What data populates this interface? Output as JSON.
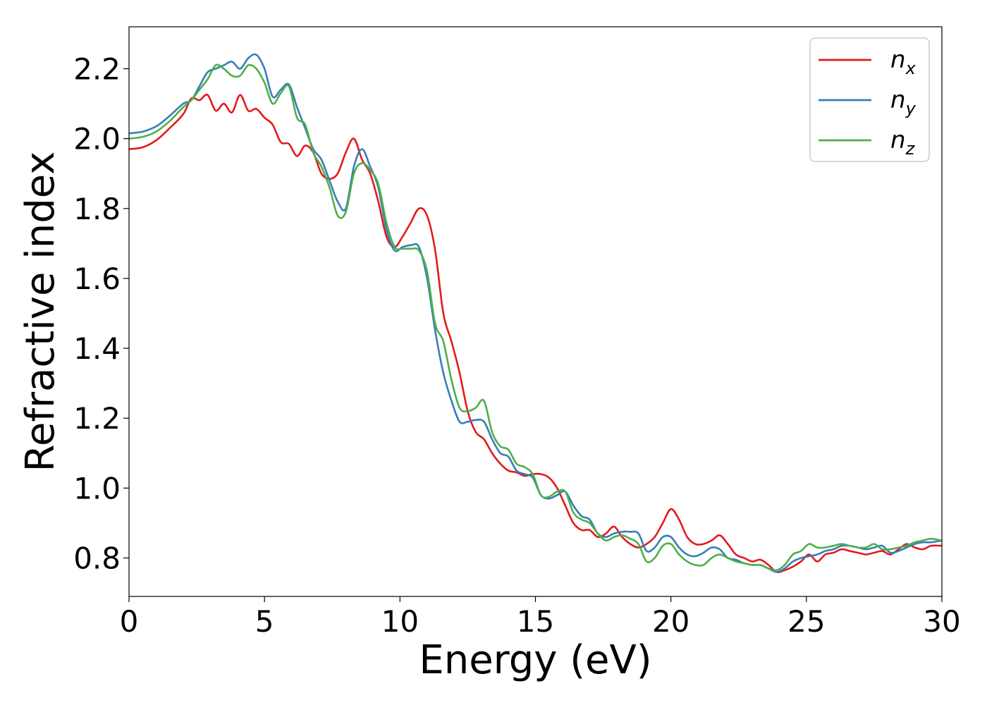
{
  "chart_data": {
    "type": "line",
    "xlabel": "Energy (eV)",
    "ylabel": "Refractive index",
    "xlim": [
      0,
      30
    ],
    "ylim": [
      0.69,
      2.32
    ],
    "xticks": [
      "0",
      "5",
      "10",
      "15",
      "20",
      "25",
      "30"
    ],
    "yticks": [
      "0.8",
      "1.0",
      "1.2",
      "1.4",
      "1.6",
      "1.8",
      "2.0",
      "2.2"
    ],
    "grid": false,
    "legend_position": "top-right",
    "series": [
      {
        "name": "n_x",
        "label_main": "n",
        "label_sub": "x",
        "color": "#e41a1c",
        "x": [
          0,
          0.5,
          1,
          1.5,
          2,
          2.3,
          2.6,
          2.9,
          3.2,
          3.5,
          3.8,
          4.1,
          4.4,
          4.7,
          5,
          5.3,
          5.6,
          5.9,
          6.2,
          6.5,
          6.8,
          7.1,
          7.4,
          7.7,
          8,
          8.3,
          8.6,
          8.9,
          9.2,
          9.5,
          9.8,
          10.1,
          10.4,
          10.7,
          11.0,
          11.3,
          11.6,
          11.9,
          12.2,
          12.5,
          12.8,
          13.1,
          13.4,
          13.7,
          14.0,
          14.3,
          14.6,
          14.9,
          15.2,
          15.5,
          15.8,
          16.1,
          16.4,
          16.7,
          17.0,
          17.3,
          17.6,
          17.9,
          18.2,
          18.5,
          18.8,
          19.1,
          19.4,
          19.7,
          20.0,
          20.3,
          20.6,
          20.9,
          21.2,
          21.5,
          21.8,
          22.1,
          22.4,
          22.7,
          23.0,
          23.3,
          23.6,
          23.9,
          24.2,
          24.5,
          24.8,
          25.1,
          25.4,
          25.7,
          26.0,
          26.3,
          26.6,
          26.9,
          27.2,
          27.5,
          27.8,
          28.1,
          28.4,
          28.7,
          29.0,
          29.3,
          29.6,
          30
        ],
        "y": [
          1.97,
          1.975,
          1.995,
          2.03,
          2.07,
          2.115,
          2.11,
          2.125,
          2.08,
          2.1,
          2.075,
          2.125,
          2.08,
          2.085,
          2.06,
          2.04,
          1.99,
          1.985,
          1.95,
          1.98,
          1.96,
          1.9,
          1.885,
          1.9,
          1.96,
          2.0,
          1.94,
          1.9,
          1.82,
          1.72,
          1.69,
          1.72,
          1.76,
          1.8,
          1.78,
          1.68,
          1.5,
          1.42,
          1.33,
          1.22,
          1.16,
          1.14,
          1.1,
          1.07,
          1.05,
          1.045,
          1.035,
          1.04,
          1.04,
          1.03,
          1.0,
          0.95,
          0.9,
          0.88,
          0.88,
          0.86,
          0.87,
          0.89,
          0.86,
          0.84,
          0.83,
          0.84,
          0.86,
          0.9,
          0.94,
          0.91,
          0.86,
          0.84,
          0.84,
          0.85,
          0.865,
          0.84,
          0.81,
          0.8,
          0.79,
          0.795,
          0.78,
          0.76,
          0.765,
          0.775,
          0.79,
          0.81,
          0.79,
          0.81,
          0.815,
          0.825,
          0.82,
          0.815,
          0.81,
          0.815,
          0.82,
          0.81,
          0.825,
          0.84,
          0.83,
          0.825,
          0.835,
          0.835
        ]
      },
      {
        "name": "n_y",
        "label_main": "n",
        "label_sub": "y",
        "color": "#377eb8",
        "x": [
          0,
          0.5,
          1,
          1.5,
          2,
          2.3,
          2.6,
          2.9,
          3.2,
          3.5,
          3.8,
          4.1,
          4.4,
          4.7,
          5,
          5.3,
          5.6,
          5.9,
          6.2,
          6.5,
          6.8,
          7.1,
          7.4,
          7.7,
          8,
          8.3,
          8.6,
          8.9,
          9.2,
          9.5,
          9.8,
          10.1,
          10.4,
          10.7,
          11.0,
          11.3,
          11.6,
          11.9,
          12.2,
          12.5,
          12.8,
          13.1,
          13.4,
          13.7,
          14.0,
          14.3,
          14.6,
          14.9,
          15.2,
          15.5,
          15.8,
          16.1,
          16.4,
          16.7,
          17.0,
          17.3,
          17.6,
          17.9,
          18.2,
          18.5,
          18.8,
          19.1,
          19.4,
          19.7,
          20.0,
          20.3,
          20.6,
          20.9,
          21.2,
          21.5,
          21.8,
          22.1,
          22.4,
          22.7,
          23.0,
          23.3,
          23.6,
          23.9,
          24.2,
          24.5,
          24.8,
          25.1,
          25.4,
          25.7,
          26.0,
          26.3,
          26.6,
          26.9,
          27.2,
          27.5,
          27.8,
          28.1,
          28.4,
          28.7,
          29.0,
          29.3,
          29.6,
          30
        ],
        "y": [
          2.015,
          2.02,
          2.035,
          2.065,
          2.1,
          2.11,
          2.15,
          2.19,
          2.2,
          2.21,
          2.22,
          2.2,
          2.23,
          2.24,
          2.2,
          2.12,
          2.14,
          2.155,
          2.09,
          2.03,
          1.97,
          1.94,
          1.88,
          1.82,
          1.8,
          1.92,
          1.97,
          1.92,
          1.86,
          1.74,
          1.68,
          1.69,
          1.695,
          1.69,
          1.6,
          1.45,
          1.33,
          1.25,
          1.19,
          1.19,
          1.195,
          1.19,
          1.14,
          1.1,
          1.09,
          1.05,
          1.04,
          1.03,
          0.98,
          0.97,
          0.98,
          0.99,
          0.95,
          0.92,
          0.91,
          0.87,
          0.86,
          0.87,
          0.875,
          0.875,
          0.87,
          0.82,
          0.83,
          0.86,
          0.86,
          0.83,
          0.81,
          0.805,
          0.815,
          0.83,
          0.825,
          0.8,
          0.795,
          0.785,
          0.78,
          0.78,
          0.77,
          0.76,
          0.77,
          0.79,
          0.8,
          0.805,
          0.81,
          0.82,
          0.825,
          0.835,
          0.835,
          0.83,
          0.825,
          0.83,
          0.835,
          0.815,
          0.82,
          0.83,
          0.84,
          0.845,
          0.845,
          0.85
        ]
      },
      {
        "name": "n_z",
        "label_main": "n",
        "label_sub": "z",
        "color": "#4daf4a",
        "x": [
          0,
          0.5,
          1,
          1.5,
          2,
          2.3,
          2.6,
          2.9,
          3.2,
          3.5,
          3.8,
          4.1,
          4.4,
          4.7,
          5,
          5.3,
          5.6,
          5.9,
          6.2,
          6.5,
          6.8,
          7.1,
          7.4,
          7.7,
          8,
          8.3,
          8.6,
          8.9,
          9.2,
          9.5,
          9.8,
          10.1,
          10.4,
          10.7,
          11.0,
          11.3,
          11.6,
          11.9,
          12.2,
          12.5,
          12.8,
          13.1,
          13.4,
          13.7,
          14.0,
          14.3,
          14.6,
          14.9,
          15.2,
          15.5,
          15.8,
          16.1,
          16.4,
          16.7,
          17.0,
          17.3,
          17.6,
          17.9,
          18.2,
          18.5,
          18.8,
          19.1,
          19.4,
          19.7,
          20.0,
          20.3,
          20.6,
          20.9,
          21.2,
          21.5,
          21.8,
          22.1,
          22.4,
          22.7,
          23.0,
          23.3,
          23.6,
          23.9,
          24.2,
          24.5,
          24.8,
          25.1,
          25.4,
          25.7,
          26.0,
          26.3,
          26.6,
          26.9,
          27.2,
          27.5,
          27.8,
          28.1,
          28.4,
          28.7,
          29.0,
          29.3,
          29.6,
          30
        ],
        "y": [
          2.0,
          2.005,
          2.02,
          2.05,
          2.09,
          2.11,
          2.14,
          2.17,
          2.21,
          2.2,
          2.18,
          2.18,
          2.21,
          2.2,
          2.16,
          2.1,
          2.13,
          2.15,
          2.06,
          2.04,
          1.96,
          1.92,
          1.86,
          1.78,
          1.79,
          1.9,
          1.93,
          1.91,
          1.87,
          1.76,
          1.69,
          1.685,
          1.685,
          1.68,
          1.62,
          1.47,
          1.42,
          1.31,
          1.23,
          1.22,
          1.23,
          1.25,
          1.16,
          1.12,
          1.11,
          1.07,
          1.06,
          1.04,
          0.98,
          0.975,
          0.99,
          0.99,
          0.93,
          0.91,
          0.9,
          0.87,
          0.85,
          0.86,
          0.865,
          0.855,
          0.84,
          0.79,
          0.8,
          0.835,
          0.84,
          0.81,
          0.79,
          0.78,
          0.78,
          0.8,
          0.81,
          0.8,
          0.79,
          0.785,
          0.78,
          0.78,
          0.77,
          0.765,
          0.78,
          0.81,
          0.82,
          0.84,
          0.83,
          0.83,
          0.835,
          0.84,
          0.835,
          0.83,
          0.83,
          0.84,
          0.825,
          0.825,
          0.83,
          0.835,
          0.845,
          0.85,
          0.855,
          0.85
        ]
      }
    ]
  }
}
